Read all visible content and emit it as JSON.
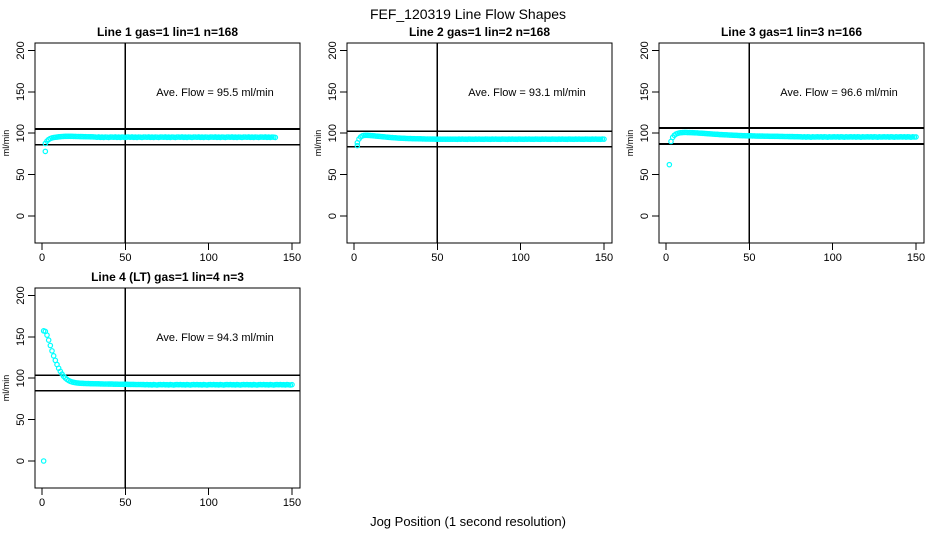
{
  "title": "FEF_120319  Line Flow Shapes",
  "xlabel": "Jog Position (1 second resolution)",
  "colors": {
    "marker": "#00FFFF",
    "line": "#000000",
    "text": "#000000",
    "background": "#FFFFFF"
  },
  "chart_data": {
    "type": "scatter",
    "layout": {
      "rows": 2,
      "cols": 3,
      "grid": false,
      "legend": "none",
      "xlim": [
        0,
        150
      ],
      "ylim": [
        0,
        200
      ],
      "x_ticks": [
        0,
        50,
        100,
        150
      ],
      "y_ticks": [
        0,
        50,
        100,
        150,
        200
      ],
      "ylabel": "ml/min",
      "vline_x": 50
    },
    "plots": [
      {
        "title": "Line 1 gas=1 lin=1 n=168",
        "ave_flow": 95.5,
        "ave_label": "Ave. Flow =  95.5  ml/min",
        "ref_lines": [
          105.1,
          86.0
        ],
        "outliers": [
          [
            2,
            78
          ]
        ],
        "x_start": 2,
        "y": [
          87.6,
          90.5,
          92.4,
          93.6,
          94.3,
          94.8,
          95.1,
          95.3,
          95.6,
          95.8,
          96.0,
          96.1,
          96.2,
          96.2,
          96.3,
          96.2,
          96.2,
          96.1,
          96.1,
          96.0,
          96.0,
          95.9,
          95.9,
          95.8,
          95.8,
          95.7,
          95.7,
          95.6,
          95.6,
          95.5,
          95.4,
          95.1,
          95.5,
          95.0,
          95.3,
          94.9,
          95.4,
          95.2,
          94.9,
          95.3,
          95.4,
          95.1,
          95.5,
          95.0,
          95.3,
          94.9,
          95.4,
          95.2,
          94.9,
          95.3,
          95.4,
          95.1,
          95.5,
          95.0,
          95.3,
          94.9,
          95.4,
          95.2,
          94.9,
          95.3,
          95.4,
          95.1,
          95.5,
          95.0,
          95.3,
          94.9,
          95.4,
          95.2,
          94.9,
          95.3,
          95.4,
          95.1,
          95.5,
          95.0,
          95.3,
          94.9,
          95.4,
          95.2,
          94.9,
          95.3,
          95.4,
          95.1,
          95.5,
          95.0,
          95.3,
          94.9,
          95.4,
          95.2,
          94.9,
          95.3,
          95.4,
          95.1,
          95.5,
          95.0,
          95.3,
          94.9,
          95.4,
          95.2,
          94.9,
          95.3,
          95.4,
          95.1,
          95.5,
          95.0,
          95.3,
          94.9,
          95.4,
          95.2,
          94.9,
          95.3,
          95.4,
          95.1,
          95.5,
          95.0,
          95.3,
          94.9,
          95.4,
          95.2,
          94.9,
          95.3,
          95.4,
          95.1,
          95.5,
          95.0,
          95.3,
          94.9,
          95.4,
          95.2,
          94.9,
          95.3,
          95.4,
          95.1,
          95.5,
          95.0,
          95.3,
          94.9,
          95.4,
          95.2,
          94.9
        ]
      },
      {
        "title": "Line 2 gas=1 lin=2 n=168",
        "ave_flow": 93.1,
        "ave_label": "Ave. Flow =  93.1  ml/min",
        "ref_lines": [
          102.4,
          83.8
        ],
        "outliers": [
          [
            2,
            85
          ]
        ],
        "x_start": 2,
        "y": [
          88.5,
          93.0,
          95.5,
          96.8,
          97.3,
          97.5,
          97.4,
          97.3,
          97.2,
          97.0,
          96.8,
          96.6,
          96.4,
          96.2,
          96.0,
          95.8,
          95.6,
          95.4,
          95.2,
          95.0,
          94.8,
          94.7,
          94.5,
          94.4,
          94.2,
          94.1,
          94.0,
          93.9,
          93.8,
          93.7,
          93.6,
          93.5,
          93.5,
          93.4,
          93.4,
          93.3,
          93.3,
          93.2,
          93.2,
          93.1,
          93.1,
          93.0,
          93.0,
          93.0,
          92.9,
          92.9,
          92.9,
          92.8,
          92.8,
          92.8,
          92.8,
          92.8,
          92.8,
          92.8,
          92.8,
          92.8,
          92.8,
          92.8,
          92.8,
          92.8,
          92.6,
          92.9,
          92.7,
          93.0,
          92.7,
          92.8,
          92.6,
          92.9,
          92.8,
          92.8,
          92.6,
          92.9,
          92.7,
          93.0,
          92.7,
          92.8,
          92.6,
          92.9,
          92.8,
          92.8,
          92.6,
          92.9,
          92.7,
          93.0,
          92.7,
          92.8,
          92.6,
          92.9,
          92.8,
          92.8,
          92.6,
          92.9,
          92.7,
          93.0,
          92.7,
          92.8,
          92.6,
          92.9,
          92.8,
          92.8,
          92.6,
          92.9,
          92.7,
          93.0,
          92.7,
          92.8,
          92.6,
          92.9,
          92.8,
          92.8,
          92.6,
          92.9,
          92.7,
          93.0,
          92.7,
          92.8,
          92.6,
          92.9,
          92.8,
          92.8,
          92.6,
          92.9,
          92.7,
          93.0,
          92.7,
          92.8,
          92.6,
          92.9,
          92.8,
          92.8,
          92.6,
          92.9,
          92.7,
          93.0,
          92.7,
          92.8,
          92.6,
          92.9,
          92.8,
          92.8,
          92.6,
          92.9,
          92.7,
          93.0,
          92.7,
          92.8,
          92.6,
          92.9,
          92.8
        ]
      },
      {
        "title": "Line 3 gas=1 lin=3 n=166",
        "ave_flow": 96.6,
        "ave_label": "Ave. Flow =  96.6  ml/min",
        "ref_lines": [
          106.3,
          86.9
        ],
        "outliers": [
          [
            2,
            62
          ]
        ],
        "x_start": 3,
        "y": [
          90.0,
          95.0,
          97.5,
          99.0,
          99.8,
          100.3,
          100.6,
          100.8,
          100.9,
          100.9,
          100.8,
          100.8,
          100.7,
          100.6,
          100.5,
          100.4,
          100.3,
          100.1,
          100.0,
          99.9,
          99.7,
          99.6,
          99.4,
          99.3,
          99.1,
          99.0,
          98.8,
          98.7,
          98.6,
          98.4,
          98.3,
          98.2,
          98.1,
          98.0,
          97.9,
          97.8,
          97.7,
          97.6,
          97.5,
          97.4,
          97.3,
          97.2,
          97.1,
          97.0,
          97.0,
          96.9,
          96.9,
          96.8,
          96.8,
          96.7,
          96.7,
          96.6,
          96.6,
          96.5,
          96.5,
          96.5,
          96.4,
          96.4,
          96.4,
          96.3,
          96.3,
          96.3,
          96.2,
          96.2,
          96.2,
          96.1,
          96.1,
          96.1,
          96.0,
          96.0,
          96.0,
          95.9,
          95.9,
          95.9,
          95.8,
          95.8,
          95.8,
          95.7,
          95.6,
          95.4,
          95.7,
          95.3,
          95.6,
          95.5,
          95.2,
          95.6,
          95.4,
          95.5,
          95.6,
          95.4,
          95.7,
          95.3,
          95.6,
          95.5,
          95.2,
          95.6,
          95.4,
          95.5,
          95.6,
          95.4,
          95.7,
          95.3,
          95.6,
          95.5,
          95.2,
          95.6,
          95.4,
          95.5,
          95.6,
          95.4,
          95.7,
          95.3,
          95.6,
          95.5,
          95.2,
          95.6,
          95.4,
          95.5,
          95.6,
          95.4,
          95.7,
          95.3,
          95.6,
          95.5,
          95.2,
          95.6,
          95.4,
          95.5,
          95.6,
          95.4,
          95.7,
          95.3,
          95.6,
          95.5,
          95.2,
          95.6,
          95.4,
          95.5,
          95.6,
          95.4,
          95.7,
          95.3,
          95.6,
          95.5,
          95.2,
          95.6,
          95.4,
          95.5
        ]
      },
      {
        "title": "Line 4 (LT) gas=1 lin=4 n=3",
        "ave_flow": 94.3,
        "ave_label": "Ave. Flow =  94.3  ml/min",
        "ref_lines": [
          103.7,
          84.9
        ],
        "outliers": [
          [
            1,
            0
          ]
        ],
        "x_start": 1,
        "y": [
          157.2,
          156.5,
          152.0,
          146.0,
          139.5,
          133.0,
          127.0,
          121.5,
          116.5,
          112.0,
          108.2,
          105.0,
          102.3,
          100.2,
          98.5,
          97.2,
          96.2,
          95.5,
          95.0,
          94.6,
          94.3,
          94.1,
          93.9,
          93.8,
          93.7,
          93.6,
          93.5,
          93.5,
          93.4,
          93.4,
          93.3,
          93.3,
          93.2,
          93.2,
          93.1,
          93.1,
          93.0,
          93.0,
          93.0,
          92.9,
          92.9,
          92.9,
          92.8,
          92.8,
          92.8,
          92.7,
          92.7,
          92.7,
          92.6,
          92.6,
          92.6,
          92.5,
          92.5,
          92.5,
          92.5,
          92.4,
          92.4,
          92.4,
          92.4,
          92.3,
          92.3,
          92.1,
          92.4,
          92.0,
          92.2,
          91.9,
          92.3,
          92.1,
          91.8,
          92.2,
          92.3,
          92.1,
          92.4,
          92.0,
          92.2,
          91.9,
          92.3,
          92.1,
          91.8,
          92.2,
          92.3,
          92.1,
          92.4,
          92.0,
          92.2,
          91.9,
          92.3,
          92.1,
          91.8,
          92.2,
          92.3,
          92.1,
          92.4,
          92.0,
          92.2,
          91.9,
          92.3,
          92.1,
          91.8,
          92.2,
          92.3,
          92.1,
          92.4,
          92.0,
          92.2,
          91.9,
          92.3,
          92.1,
          91.8,
          92.2,
          92.3,
          92.1,
          92.4,
          92.0,
          92.2,
          91.9,
          92.3,
          92.1,
          91.8,
          92.2,
          92.3,
          92.1,
          92.4,
          92.0,
          92.2,
          91.9,
          92.3,
          92.1,
          91.8,
          92.2,
          92.3,
          92.1,
          92.4,
          92.0,
          92.2,
          91.9,
          92.3,
          92.1,
          91.8,
          92.2,
          92.3,
          92.1,
          92.4,
          92.0,
          92.2,
          91.9,
          92.3,
          92.1,
          91.8,
          92.2
        ]
      }
    ]
  }
}
